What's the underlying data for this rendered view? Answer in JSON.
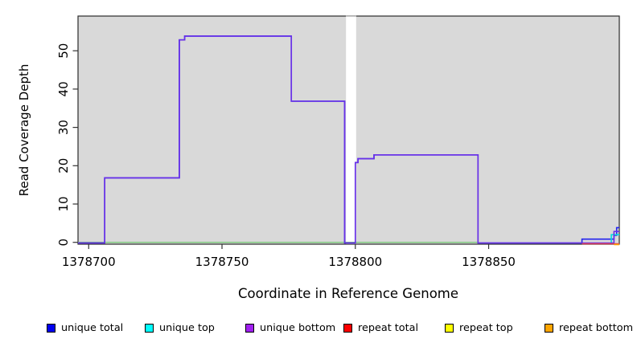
{
  "axes": {
    "xlabel": "Coordinate in Reference Genome",
    "ylabel": "Read Coverage Depth",
    "x_ticks": [
      1378700,
      1378750,
      1378800,
      1378850
    ],
    "y_ticks": [
      0,
      10,
      20,
      30,
      40,
      50
    ],
    "xlim": [
      1378696,
      1378899
    ],
    "ylim": [
      0,
      59
    ]
  },
  "chart_data": {
    "type": "line",
    "style": "step",
    "title": "",
    "xlabel": "Coordinate in Reference Genome",
    "ylabel": "Read Coverage Depth",
    "xlim": [
      1378696,
      1378899
    ],
    "ylim": [
      0,
      59
    ],
    "grid": false,
    "panel_bg": "#d9d9d9",
    "border_color": "#2b2b2b",
    "tick_color": "#333333",
    "gap_region": {
      "x_start": 1378796.5,
      "x_end": 1378800.3,
      "color": "#ffffff",
      "top_edge_color": "#a0a0a0"
    },
    "baseline": {
      "name": "zero-line",
      "color": "#7cc87c",
      "x_start": 1378696,
      "x_end": 1378846,
      "value": 0
    },
    "series": [
      {
        "name": "unique total",
        "color": "#2222ee",
        "line_color": "#2222ee",
        "steps": [
          [
            1378696,
            0
          ],
          [
            1378706,
            17
          ],
          [
            1378734,
            53
          ],
          [
            1378736,
            54
          ],
          [
            1378776,
            37
          ],
          [
            1378796,
            0
          ],
          [
            1378800,
            21
          ],
          [
            1378801,
            22
          ],
          [
            1378807,
            23
          ],
          [
            1378846,
            0
          ],
          [
            1378885,
            1
          ],
          [
            1378897,
            2
          ],
          [
            1378898,
            4
          ]
        ],
        "end": 1378899
      },
      {
        "name": "unique top",
        "color": "#00e5e5",
        "line_color": "#00dddd",
        "steps": [
          [
            1378895.8,
            0
          ],
          [
            1378896,
            2
          ]
        ],
        "end": 1378899
      },
      {
        "name": "unique bottom",
        "color": "#a020f0",
        "line_color": "#6a30e8",
        "steps": [
          [
            1378696,
            0
          ],
          [
            1378706,
            17
          ],
          [
            1378734,
            53
          ],
          [
            1378736,
            54
          ],
          [
            1378776,
            37
          ],
          [
            1378796,
            0
          ],
          [
            1378800,
            21
          ],
          [
            1378801,
            22
          ],
          [
            1378807,
            23
          ],
          [
            1378846,
            0
          ],
          [
            1378897,
            3
          ]
        ],
        "end": 1378899
      },
      {
        "name": "repeat total",
        "color": "#ee0000",
        "line_color": "#e04050",
        "steps": [
          [
            1378885,
            0
          ]
        ],
        "end": 1378899
      },
      {
        "name": "repeat top",
        "color": "#ffff00",
        "line_color": "#ffff00",
        "steps": [],
        "end": 1378899
      },
      {
        "name": "repeat bottom",
        "color": "#ffa500",
        "line_color": "#ffa500",
        "steps": [
          [
            1378897,
            0
          ]
        ],
        "end": 1378899
      }
    ],
    "legend": [
      {
        "label": "unique total",
        "color": "#0000ee"
      },
      {
        "label": "unique top",
        "color": "#00ffff"
      },
      {
        "label": "unique bottom",
        "color": "#a020f0"
      },
      {
        "label": "repeat total",
        "color": "#ff0000"
      },
      {
        "label": "repeat top",
        "color": "#ffff00"
      },
      {
        "label": "repeat bottom",
        "color": "#ffa500"
      }
    ],
    "legend_position": "bottom"
  }
}
